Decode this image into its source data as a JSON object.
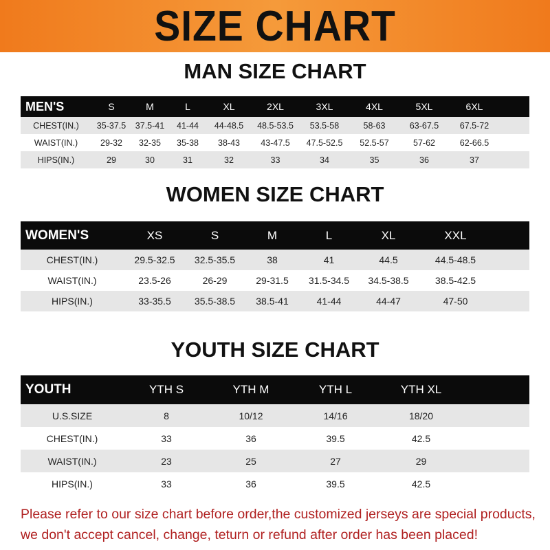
{
  "banner_title": "SIZE CHART",
  "men": {
    "title": "MAN SIZE CHART",
    "header": [
      "MEN'S",
      "S",
      "M",
      "L",
      "XL",
      "2XL",
      "3XL",
      "4XL",
      "5XL",
      "6XL"
    ],
    "rows": [
      [
        "CHEST(IN.)",
        "35-37.5",
        "37.5-41",
        "41-44",
        "44-48.5",
        "48.5-53.5",
        "53.5-58",
        "58-63",
        "63-67.5",
        "67.5-72"
      ],
      [
        "WAIST(IN.)",
        "29-32",
        "32-35",
        "35-38",
        "38-43",
        "43-47.5",
        "47.5-52.5",
        "52.5-57",
        "57-62",
        "62-66.5"
      ],
      [
        "HIPS(IN.)",
        "29",
        "30",
        "31",
        "32",
        "33",
        "34",
        "35",
        "36",
        "37"
      ]
    ]
  },
  "women": {
    "title": "WOMEN SIZE CHART",
    "header": [
      "WOMEN'S",
      "XS",
      "S",
      "M",
      "L",
      "XL",
      "XXL"
    ],
    "rows": [
      [
        "CHEST(IN.)",
        "29.5-32.5",
        "32.5-35.5",
        "38",
        "41",
        "44.5",
        "44.5-48.5"
      ],
      [
        "WAIST(IN.)",
        "23.5-26",
        "26-29",
        "29-31.5",
        "31.5-34.5",
        "34.5-38.5",
        "38.5-42.5"
      ],
      [
        "HIPS(IN.)",
        "33-35.5",
        "35.5-38.5",
        "38.5-41",
        "41-44",
        "44-47",
        "47-50"
      ]
    ]
  },
  "youth": {
    "title": "YOUTH SIZE CHART",
    "header": [
      "YOUTH",
      "YTH S",
      "YTH M",
      "YTH L",
      "YTH XL"
    ],
    "rows": [
      [
        "U.S.SIZE",
        "8",
        "10/12",
        "14/16",
        "18/20"
      ],
      [
        "CHEST(IN.)",
        "33",
        "36",
        "39.5",
        "42.5"
      ],
      [
        "WAIST(IN.)",
        "23",
        "25",
        "27",
        "29"
      ],
      [
        "HIPS(IN.)",
        "33",
        "36",
        "39.5",
        "42.5"
      ]
    ]
  },
  "notice": "Please refer to our size chart before order,the customized jerseys are special products, we don't accept cancel, change, teturn or refund after order has been placed!",
  "colors": {
    "banner": "#f07a1c",
    "header_row": "#0b0b0b",
    "shaded_row": "#e6e6e6",
    "notice": "#b02020"
  }
}
